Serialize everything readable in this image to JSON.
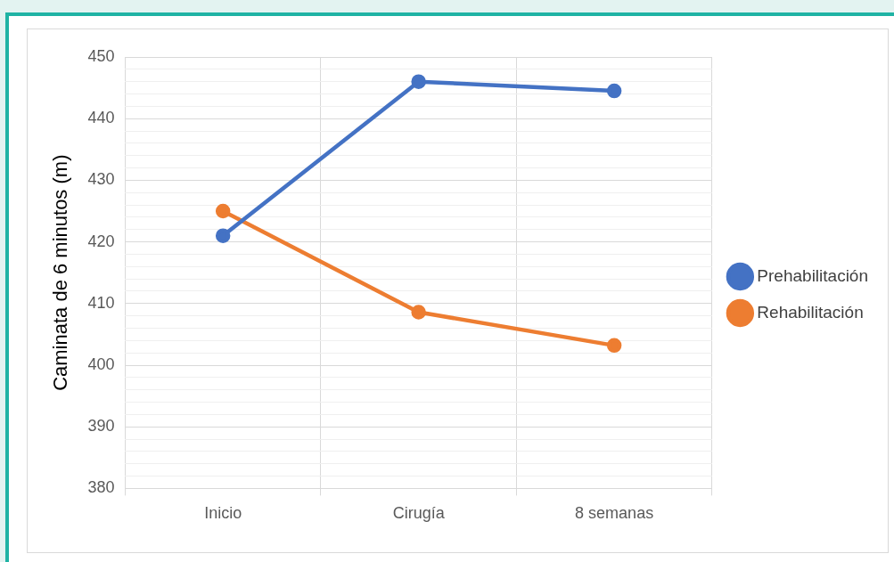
{
  "chart_data": {
    "type": "line",
    "ylabel": "Caminata de 6 minutos (m)",
    "categories": [
      "Inicio",
      "Cirugía",
      "8 semanas"
    ],
    "series": [
      {
        "name": "Prehabilitación",
        "color": "#4472c4",
        "values": [
          421,
          446,
          444.5
        ]
      },
      {
        "name": "Rehabilitación",
        "color": "#ed7d31",
        "values": [
          425,
          408.6,
          403.2
        ]
      }
    ],
    "ylim": [
      380,
      450
    ],
    "yticks": [
      380,
      {
        "value": 382,
        "label": null
      },
      {
        "value": 384,
        "label": null
      },
      {
        "value": 386,
        "label": null
      },
      {
        "value": 388,
        "label": null
      },
      390,
      {
        "value": 392,
        "label": null
      },
      {
        "value": 394,
        "label": null
      },
      {
        "value": 396,
        "label": null
      },
      {
        "value": 398,
        "label": null
      },
      400,
      {
        "value": 402,
        "label": null
      },
      {
        "value": 404,
        "label": null
      },
      {
        "value": 406,
        "label": null
      },
      {
        "value": 408,
        "label": null
      },
      410,
      {
        "value": 412,
        "label": null
      },
      {
        "value": 414,
        "label": null
      },
      {
        "value": 416,
        "label": null
      },
      {
        "value": 418,
        "label": null
      },
      420,
      {
        "value": 422,
        "label": null
      },
      {
        "value": 424,
        "label": null
      },
      {
        "value": 426,
        "label": null
      },
      {
        "value": 428,
        "label": null
      },
      430,
      {
        "value": 432,
        "label": null
      },
      {
        "value": 434,
        "label": null
      },
      {
        "value": 436,
        "label": null
      },
      {
        "value": 438,
        "label": null
      },
      440,
      {
        "value": 442,
        "label": null
      },
      {
        "value": 444,
        "label": null
      },
      {
        "value": 446,
        "label": null
      },
      {
        "value": 448,
        "label": null
      },
      450
    ],
    "grid": true,
    "legend": "right",
    "marker": "circle",
    "line_style": "solid"
  }
}
